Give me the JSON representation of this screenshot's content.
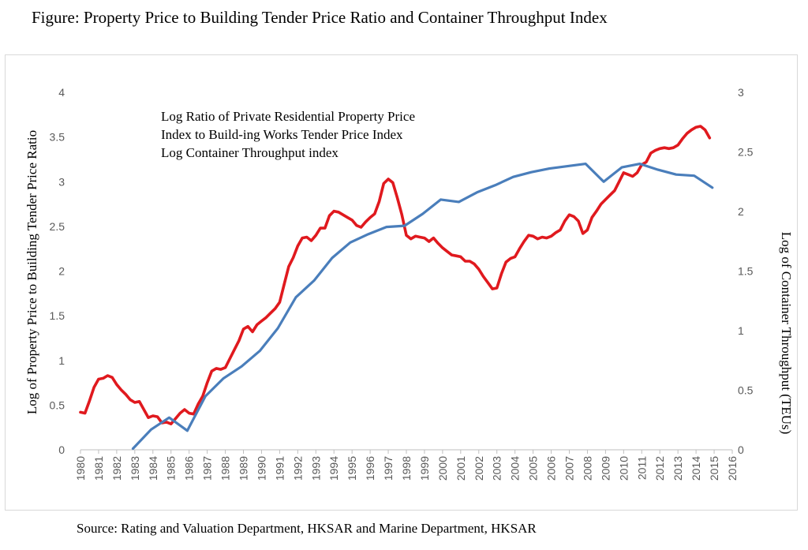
{
  "figure": {
    "title": "Figure:  Property Price to Building Tender Price Ratio and Container Throughput Index",
    "source": "Source:  Rating and Valuation Department, HKSAR and Marine Department, HKSAR"
  },
  "chart_data": {
    "type": "line",
    "title": "Figure:  Property Price to Building Tender Price Ratio and Container Throughput Index",
    "xlabel": "",
    "ylabel": "Log of Property Price to Building Tender Price Ratio",
    "y2label": "Log of Container Throughput (TEUs)",
    "xlim": [
      1980,
      2016
    ],
    "ylim": [
      0,
      4
    ],
    "y2lim": [
      0,
      3
    ],
    "grid": false,
    "legend_position": "top-left",
    "x_ticks": [
      "1980",
      "1981",
      "1982",
      "1983",
      "1984",
      "1985",
      "1986",
      "1987",
      "1988",
      "1989",
      "1990",
      "1991",
      "1992",
      "1993",
      "1994",
      "1995",
      "1996",
      "1997",
      "1998",
      "1999",
      "2000",
      "2001",
      "2002",
      "2003",
      "2004",
      "2005",
      "2006",
      "2007",
      "2008",
      "2009",
      "2010",
      "2011",
      "2012",
      "2013",
      "2014",
      "2015",
      "2016"
    ],
    "y_ticks": [
      "0",
      "0.5",
      "1",
      "1.5",
      "2",
      "2.5",
      "3",
      "3.5",
      "4"
    ],
    "y2_ticks": [
      "0",
      "0.5",
      "1",
      "1.5",
      "2",
      "2.5",
      "3"
    ],
    "annotation_lines": [
      "Log Ratio of Private Residential Property Price",
      "Index  to Build-ing Works Tender  Price Index",
      "Log Container Throughput index"
    ],
    "series": [
      {
        "axis": "left",
        "color": "#e0191e",
        "points": [
          [
            1980.0,
            0.42
          ],
          [
            1980.25,
            0.41
          ],
          [
            1980.5,
            0.55
          ],
          [
            1980.75,
            0.7
          ],
          [
            1981.0,
            0.79
          ],
          [
            1981.25,
            0.8
          ],
          [
            1981.5,
            0.83
          ],
          [
            1981.75,
            0.81
          ],
          [
            1982.0,
            0.73
          ],
          [
            1982.25,
            0.67
          ],
          [
            1982.5,
            0.62
          ],
          [
            1982.75,
            0.56
          ],
          [
            1983.0,
            0.53
          ],
          [
            1983.25,
            0.54
          ],
          [
            1983.5,
            0.45
          ],
          [
            1983.75,
            0.36
          ],
          [
            1984.0,
            0.38
          ],
          [
            1984.25,
            0.37
          ],
          [
            1984.5,
            0.3
          ],
          [
            1984.75,
            0.31
          ],
          [
            1985.0,
            0.29
          ],
          [
            1985.25,
            0.35
          ],
          [
            1985.5,
            0.41
          ],
          [
            1985.75,
            0.45
          ],
          [
            1986.0,
            0.41
          ],
          [
            1986.25,
            0.4
          ],
          [
            1986.5,
            0.51
          ],
          [
            1986.75,
            0.6
          ],
          [
            1987.0,
            0.75
          ],
          [
            1987.25,
            0.88
          ],
          [
            1987.5,
            0.91
          ],
          [
            1987.75,
            0.9
          ],
          [
            1988.0,
            0.92
          ],
          [
            1988.25,
            1.02
          ],
          [
            1988.5,
            1.12
          ],
          [
            1988.75,
            1.22
          ],
          [
            1989.0,
            1.35
          ],
          [
            1989.25,
            1.38
          ],
          [
            1989.5,
            1.32
          ],
          [
            1989.75,
            1.4
          ],
          [
            1990.0,
            1.44
          ],
          [
            1990.25,
            1.48
          ],
          [
            1990.5,
            1.53
          ],
          [
            1990.75,
            1.58
          ],
          [
            1991.0,
            1.65
          ],
          [
            1991.25,
            1.85
          ],
          [
            1991.5,
            2.05
          ],
          [
            1991.75,
            2.15
          ],
          [
            1992.0,
            2.28
          ],
          [
            1992.25,
            2.37
          ],
          [
            1992.5,
            2.38
          ],
          [
            1992.75,
            2.34
          ],
          [
            1993.0,
            2.4
          ],
          [
            1993.25,
            2.48
          ],
          [
            1993.5,
            2.48
          ],
          [
            1993.75,
            2.62
          ],
          [
            1994.0,
            2.67
          ],
          [
            1994.25,
            2.66
          ],
          [
            1994.5,
            2.63
          ],
          [
            1994.75,
            2.6
          ],
          [
            1995.0,
            2.57
          ],
          [
            1995.25,
            2.51
          ],
          [
            1995.5,
            2.49
          ],
          [
            1995.75,
            2.55
          ],
          [
            1996.0,
            2.6
          ],
          [
            1996.25,
            2.64
          ],
          [
            1996.5,
            2.78
          ],
          [
            1996.75,
            2.98
          ],
          [
            1997.0,
            3.03
          ],
          [
            1997.25,
            2.99
          ],
          [
            1997.5,
            2.82
          ],
          [
            1997.75,
            2.63
          ],
          [
            1998.0,
            2.4
          ],
          [
            1998.25,
            2.36
          ],
          [
            1998.5,
            2.39
          ],
          [
            1998.75,
            2.38
          ],
          [
            1999.0,
            2.37
          ],
          [
            1999.25,
            2.33
          ],
          [
            1999.5,
            2.37
          ],
          [
            1999.75,
            2.31
          ],
          [
            2000.0,
            2.26
          ],
          [
            2000.25,
            2.22
          ],
          [
            2000.5,
            2.18
          ],
          [
            2000.75,
            2.17
          ],
          [
            2001.0,
            2.16
          ],
          [
            2001.25,
            2.11
          ],
          [
            2001.5,
            2.11
          ],
          [
            2001.75,
            2.08
          ],
          [
            2002.0,
            2.02
          ],
          [
            2002.25,
            1.94
          ],
          [
            2002.5,
            1.87
          ],
          [
            2002.75,
            1.8
          ],
          [
            2003.0,
            1.81
          ],
          [
            2003.25,
            1.97
          ],
          [
            2003.5,
            2.1
          ],
          [
            2003.75,
            2.14
          ],
          [
            2004.0,
            2.16
          ],
          [
            2004.25,
            2.25
          ],
          [
            2004.5,
            2.33
          ],
          [
            2004.75,
            2.4
          ],
          [
            2005.0,
            2.39
          ],
          [
            2005.25,
            2.36
          ],
          [
            2005.5,
            2.38
          ],
          [
            2005.75,
            2.37
          ],
          [
            2006.0,
            2.39
          ],
          [
            2006.25,
            2.43
          ],
          [
            2006.5,
            2.46
          ],
          [
            2006.75,
            2.56
          ],
          [
            2007.0,
            2.63
          ],
          [
            2007.25,
            2.61
          ],
          [
            2007.5,
            2.56
          ],
          [
            2007.75,
            2.42
          ],
          [
            2008.0,
            2.46
          ],
          [
            2008.25,
            2.6
          ],
          [
            2008.5,
            2.67
          ],
          [
            2008.75,
            2.75
          ],
          [
            2009.0,
            2.8
          ],
          [
            2009.25,
            2.85
          ],
          [
            2009.5,
            2.9
          ],
          [
            2009.75,
            3.0
          ],
          [
            2010.0,
            3.1
          ],
          [
            2010.25,
            3.08
          ],
          [
            2010.5,
            3.06
          ],
          [
            2010.75,
            3.1
          ],
          [
            2011.0,
            3.19
          ],
          [
            2011.25,
            3.22
          ],
          [
            2011.5,
            3.32
          ],
          [
            2011.75,
            3.35
          ],
          [
            2012.0,
            3.37
          ],
          [
            2012.25,
            3.38
          ],
          [
            2012.5,
            3.37
          ],
          [
            2012.75,
            3.38
          ],
          [
            2013.0,
            3.41
          ],
          [
            2013.25,
            3.48
          ],
          [
            2013.5,
            3.54
          ],
          [
            2013.75,
            3.58
          ],
          [
            2014.0,
            3.61
          ],
          [
            2014.25,
            3.62
          ],
          [
            2014.5,
            3.58
          ],
          [
            2014.75,
            3.49
          ]
        ]
      },
      {
        "axis": "right",
        "color": "#4a7ebb",
        "points": [
          [
            1982.9,
            0.01
          ],
          [
            1983.9,
            0.17
          ],
          [
            1984.9,
            0.27
          ],
          [
            1985.9,
            0.16
          ],
          [
            1986.9,
            0.45
          ],
          [
            1987.9,
            0.6
          ],
          [
            1988.9,
            0.7
          ],
          [
            1989.9,
            0.83
          ],
          [
            1990.9,
            1.02
          ],
          [
            1991.9,
            1.28
          ],
          [
            1992.9,
            1.42
          ],
          [
            1993.9,
            1.61
          ],
          [
            1994.9,
            1.74
          ],
          [
            1995.9,
            1.81
          ],
          [
            1996.9,
            1.87
          ],
          [
            1997.9,
            1.88
          ],
          [
            1998.9,
            1.98
          ],
          [
            1999.9,
            2.1
          ],
          [
            2000.9,
            2.08
          ],
          [
            2001.9,
            2.16
          ],
          [
            2002.9,
            2.22
          ],
          [
            2003.9,
            2.29
          ],
          [
            2004.9,
            2.33
          ],
          [
            2005.9,
            2.36
          ],
          [
            2006.9,
            2.38
          ],
          [
            2007.9,
            2.4
          ],
          [
            2008.9,
            2.25
          ],
          [
            2009.9,
            2.37
          ],
          [
            2010.9,
            2.4
          ],
          [
            2011.9,
            2.35
          ],
          [
            2012.9,
            2.31
          ],
          [
            2013.9,
            2.3
          ],
          [
            2014.9,
            2.2
          ]
        ]
      }
    ]
  }
}
